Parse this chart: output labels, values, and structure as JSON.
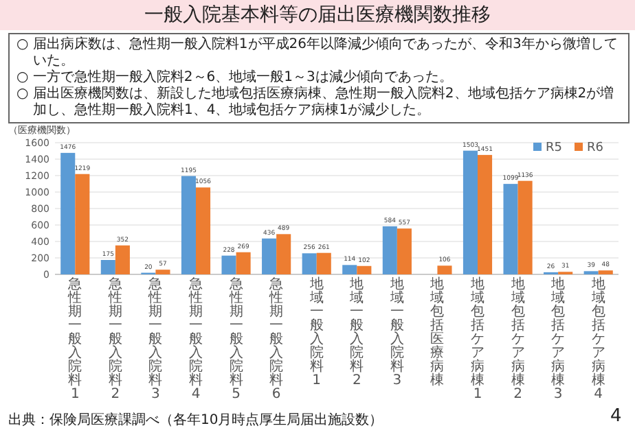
{
  "chart_data": {
    "type": "bar",
    "title": "一般入院基本料等の届出医療機関数推移",
    "ylabel": "（医療機関数）",
    "annotations": [
      "○ 届出病床数は、急性期一般入院料1が平成26年以降減少傾向であったが、令和3年から微増していた。",
      "○ 一方で急性期一般入院料2～6、地域一般1～3は減少傾向であった。",
      "○ 届出医療機関数は、新設した地域包括医療病棟、急性期一般入院料2、地域包括ケア病棟2が増加し、急性期一般入院料1、4、地域包括ケア病棟1が減少した。",
      "出典：保険局医療課調べ（各年10月時点厚生局届出施設数）",
      "4"
    ],
    "categories": [
      "急性期一般入院料1",
      "急性期一般入院料2",
      "急性期一般入院料3",
      "急性期一般入院料4",
      "急性期一般入院料5",
      "急性期一般入院料6",
      "地域一般入院料1",
      "地域一般入院料2",
      "地域一般入院料3",
      "地域包括医療病棟",
      "地域包括ケア病棟1",
      "地域包括ケア病棟2",
      "地域包括ケア病棟3",
      "地域包括ケア病棟4"
    ],
    "series": [
      {
        "name": "R5",
        "color": "#5b9bd5",
        "values": [
          1476,
          175,
          20,
          1195,
          228,
          436,
          256,
          114,
          584,
          null,
          1503,
          1099,
          26,
          39
        ]
      },
      {
        "name": "R6",
        "color": "#ed7d31",
        "values": [
          1219,
          352,
          57,
          1056,
          269,
          489,
          261,
          102,
          557,
          106,
          1451,
          1136,
          31,
          48
        ]
      }
    ],
    "ylim": [
      0,
      1600
    ],
    "yticks": [
      0,
      200,
      400,
      600,
      800,
      1000,
      1200,
      1400,
      1600
    ],
    "grid": "y",
    "legend": "top right",
    "data_labels": true
  }
}
